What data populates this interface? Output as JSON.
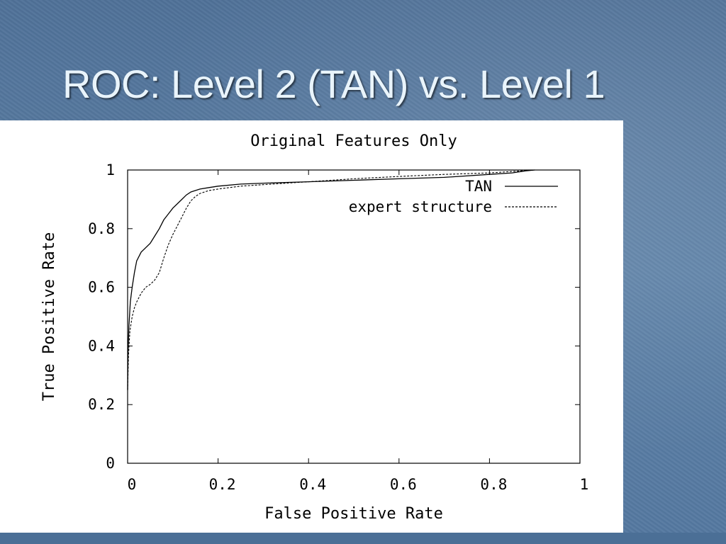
{
  "slide": {
    "title": "ROC: Level 2 (TAN) vs. Level 1"
  },
  "colors": {
    "background": "#5b7ea3",
    "title": "#e9f4fb",
    "panel": "#ffffff",
    "ink": "#000000"
  },
  "chart_data": {
    "type": "line",
    "title": "Original Features Only",
    "xlabel": "False Positive Rate",
    "ylabel": "True Positive Rate",
    "xlim": [
      0,
      1
    ],
    "ylim": [
      0,
      1
    ],
    "xticks": [
      0,
      0.2,
      0.4,
      0.6,
      0.8,
      1
    ],
    "yticks": [
      0,
      0.2,
      0.4,
      0.6,
      0.8,
      1
    ],
    "grid": false,
    "legend_position": "top-right",
    "series": [
      {
        "name": "TAN",
        "style": "solid",
        "x": [
          0,
          0.001,
          0.003,
          0.006,
          0.01,
          0.015,
          0.02,
          0.03,
          0.04,
          0.05,
          0.06,
          0.07,
          0.08,
          0.09,
          0.1,
          0.11,
          0.12,
          0.13,
          0.14,
          0.16,
          0.18,
          0.2,
          0.25,
          0.3,
          0.4,
          0.5,
          0.6,
          0.7,
          0.8,
          0.85,
          0.88,
          0.9
        ],
        "y": [
          0.25,
          0.38,
          0.47,
          0.55,
          0.6,
          0.65,
          0.69,
          0.72,
          0.735,
          0.75,
          0.775,
          0.8,
          0.83,
          0.85,
          0.87,
          0.885,
          0.9,
          0.915,
          0.925,
          0.935,
          0.94,
          0.945,
          0.952,
          0.955,
          0.96,
          0.965,
          0.97,
          0.975,
          0.985,
          0.99,
          0.997,
          1.0
        ]
      },
      {
        "name": "expert structure",
        "style": "dashed",
        "x": [
          0,
          0.002,
          0.005,
          0.01,
          0.015,
          0.02,
          0.03,
          0.04,
          0.05,
          0.06,
          0.07,
          0.08,
          0.09,
          0.1,
          0.11,
          0.12,
          0.13,
          0.14,
          0.15,
          0.16,
          0.18,
          0.2,
          0.25,
          0.3,
          0.4,
          0.5,
          0.6,
          0.7,
          0.8,
          0.85,
          0.88,
          0.9
        ],
        "y": [
          0.25,
          0.37,
          0.45,
          0.5,
          0.53,
          0.55,
          0.58,
          0.6,
          0.61,
          0.625,
          0.65,
          0.7,
          0.745,
          0.78,
          0.81,
          0.84,
          0.87,
          0.895,
          0.91,
          0.92,
          0.93,
          0.935,
          0.945,
          0.95,
          0.96,
          0.97,
          0.978,
          0.985,
          0.99,
          0.995,
          0.998,
          1.0
        ]
      }
    ]
  }
}
